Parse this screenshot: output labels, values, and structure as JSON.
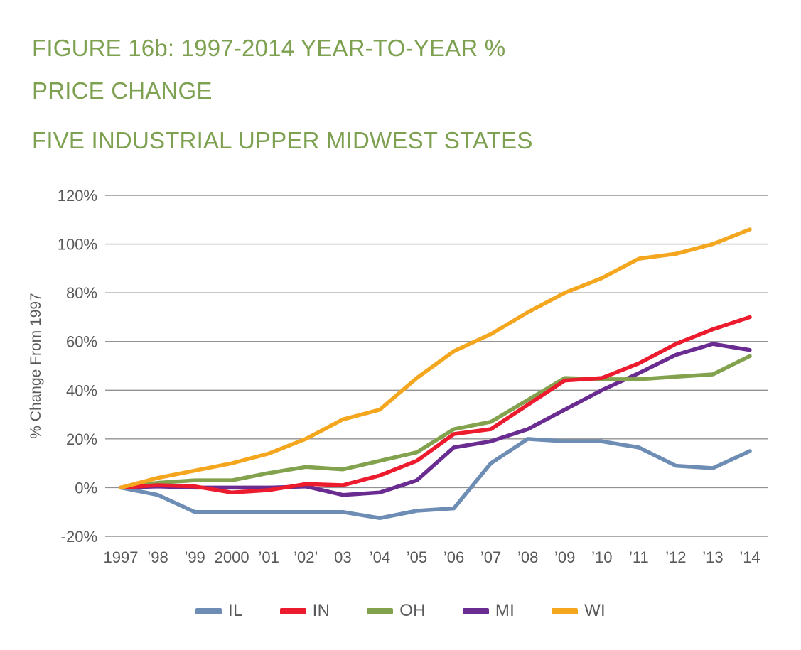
{
  "header": {
    "title_line1": "FIGURE 16b: 1997-2014 YEAR-TO-YEAR %",
    "title_line2": "PRICE CHANGE",
    "subtitle": "FIVE INDUSTRIAL UPPER MIDWEST STATES"
  },
  "colors": {
    "title_green": "#7DA150",
    "axis_text": "#58595B",
    "gridline": "#909295",
    "background": "#FFFFFF"
  },
  "chart_data": {
    "type": "line",
    "title": "FIGURE 16b: 1997-2014 YEAR-TO-YEAR % PRICE CHANGE",
    "subtitle": "FIVE INDUSTRIAL UPPER MIDWEST STATES",
    "xlabel": "",
    "ylabel": "% Change From 1997",
    "ylim": [
      -20,
      120
    ],
    "ytick_step": 20,
    "ytick_values": [
      -20,
      0,
      20,
      40,
      60,
      80,
      100,
      120
    ],
    "ytick_labels": [
      "-20%",
      "0%",
      "20%",
      "40%",
      "60%",
      "80%",
      "100%",
      "120%"
    ],
    "x_tick_labels": [
      "1997",
      "’98",
      "’99",
      "2000",
      "’01",
      "’02’",
      "03",
      "’04",
      "’05",
      "’06",
      "’07",
      "’08",
      "’09",
      "’10",
      "’11",
      "’12",
      "’13",
      "’14"
    ],
    "years": [
      1997,
      1998,
      1999,
      2000,
      2001,
      2002,
      2003,
      2004,
      2005,
      2006,
      2007,
      2008,
      2009,
      2010,
      2011,
      2012,
      2013,
      2014
    ],
    "grid": true,
    "legend_position": "bottom",
    "series": [
      {
        "name": "IL",
        "color": "#6E8DB4",
        "values": [
          0,
          -3,
          -10,
          -10,
          -10,
          -10,
          -10,
          -12.5,
          -9.5,
          -8.5,
          10,
          20,
          19,
          19,
          16.5,
          9,
          8,
          15
        ]
      },
      {
        "name": "IN",
        "color": "#EC1B2D",
        "values": [
          0,
          1,
          0.5,
          -2,
          -1,
          1.5,
          1,
          5,
          11,
          22,
          24,
          34,
          44,
          45,
          51,
          59,
          65,
          70
        ]
      },
      {
        "name": "OH",
        "color": "#83A24E",
        "values": [
          0,
          2,
          3,
          3,
          6,
          8.5,
          7.5,
          11,
          14.5,
          24,
          27,
          36,
          45,
          44.5,
          44.5,
          45.5,
          46.5,
          54
        ]
      },
      {
        "name": "MI",
        "color": "#6A2C91",
        "values": [
          0,
          0.5,
          0,
          0,
          0,
          0.5,
          -3,
          -2,
          3,
          16.5,
          19,
          24,
          32,
          40,
          47,
          54.5,
          59,
          56.5
        ]
      },
      {
        "name": "WI",
        "color": "#F4A71E",
        "values": [
          0,
          4,
          7,
          10,
          14,
          20,
          28,
          32,
          45,
          56,
          63,
          72,
          80,
          86,
          94,
          96,
          100,
          106
        ]
      }
    ]
  }
}
